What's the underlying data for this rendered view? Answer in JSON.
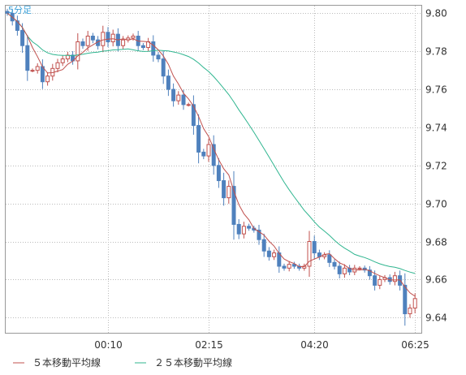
{
  "chart_data": {
    "type": "candlestick",
    "title": "5分足",
    "x_ticks": [
      "00:10",
      "02:15",
      "04:20",
      "06:25"
    ],
    "y_ticks": [
      9.8,
      9.78,
      9.76,
      9.74,
      9.72,
      9.7,
      9.68,
      9.66,
      9.64
    ],
    "ylim": [
      9.632,
      9.804
    ],
    "grid": true,
    "legend_placement": "bottom-left",
    "colors": {
      "up": "#c0504d",
      "down": "#4f81bd",
      "ma5": "#c0504d",
      "ma25": "#2fb58f",
      "grid": "#bbbbbb",
      "title": "#3aa0d8"
    },
    "series": [
      {
        "name": "５本移動平均線",
        "type": "line",
        "color": "#c0504d"
      },
      {
        "name": "２５本移動平均線",
        "type": "line",
        "color": "#2fb58f"
      }
    ],
    "close": [
      9.8,
      9.796,
      9.791,
      9.783,
      9.77,
      9.77,
      9.772,
      9.764,
      9.767,
      9.771,
      9.774,
      9.776,
      9.778,
      9.775,
      9.785,
      9.783,
      9.788,
      9.786,
      9.783,
      9.79,
      9.785,
      9.789,
      9.783,
      9.786,
      9.787,
      9.788,
      9.783,
      9.782,
      9.785,
      9.778,
      9.776,
      9.767,
      9.76,
      9.754,
      9.757,
      9.752,
      9.752,
      9.741,
      9.727,
      9.725,
      9.731,
      9.72,
      9.712,
      9.703,
      9.709,
      9.689,
      9.684,
      9.688,
      9.687,
      9.686,
      9.681,
      9.675,
      9.672,
      9.674,
      9.667,
      9.666,
      9.668,
      9.667,
      9.666,
      9.667,
      9.68,
      9.674,
      9.672,
      9.673,
      9.669,
      9.667,
      9.663,
      9.666,
      9.664,
      9.666,
      9.666,
      9.665,
      9.662,
      9.657,
      9.66,
      9.661,
      9.659,
      9.662,
      9.657,
      9.642,
      9.645,
      9.65
    ]
  }
}
